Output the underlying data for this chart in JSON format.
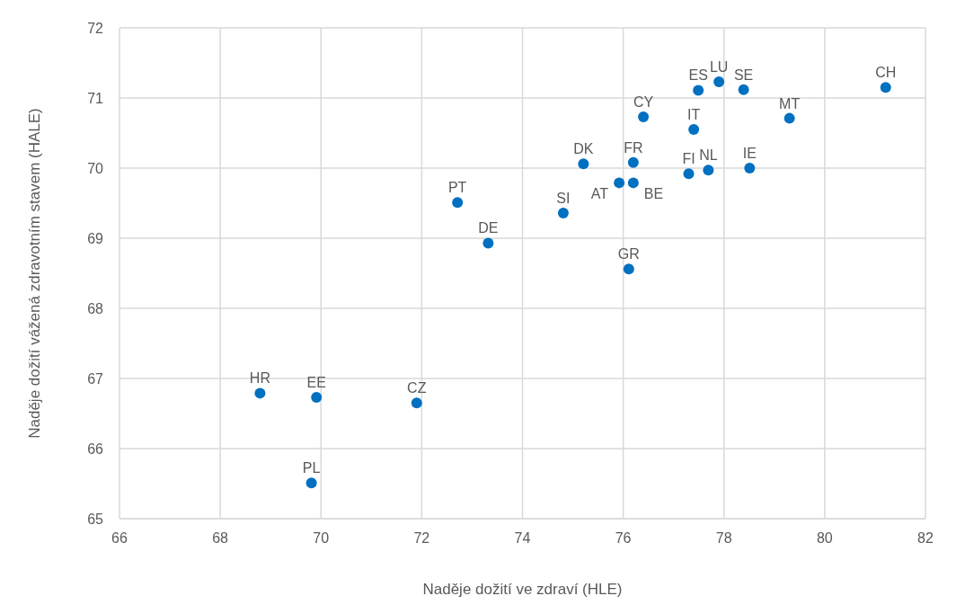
{
  "chart_data": {
    "type": "scatter",
    "xlabel": "Naděje dožití ve zdraví (HLE)",
    "ylabel": "Naděje dožití vážená zdravotním stavem (HALE)",
    "xlim": [
      66,
      82
    ],
    "xticks": [
      66,
      68,
      70,
      72,
      74,
      76,
      78,
      80,
      82
    ],
    "ylim": [
      65,
      72
    ],
    "yticks": [
      65,
      66,
      67,
      68,
      69,
      70,
      71,
      72
    ],
    "grid": true,
    "legend": false,
    "marker": "circle",
    "series": [
      {
        "name": "HR",
        "color": "#0070c0",
        "x": [
          68.79
        ],
        "values": [
          66.79
        ]
      },
      {
        "name": "EE",
        "color": "#0070c0",
        "x": [
          69.91
        ],
        "values": [
          66.73
        ]
      },
      {
        "name": "PL",
        "color": "#0070c0",
        "x": [
          69.81
        ],
        "values": [
          65.51
        ]
      },
      {
        "name": "CZ",
        "color": "#0070c0",
        "x": [
          71.9
        ],
        "values": [
          66.65
        ]
      },
      {
        "name": "PT",
        "color": "#0070c0",
        "x": [
          72.71
        ],
        "values": [
          69.51
        ]
      },
      {
        "name": "DE",
        "color": "#0070c0",
        "x": [
          73.32
        ],
        "values": [
          68.93
        ]
      },
      {
        "name": "SI",
        "color": "#0070c0",
        "x": [
          74.81
        ],
        "values": [
          69.36
        ]
      },
      {
        "name": "DK",
        "color": "#0070c0",
        "x": [
          75.21
        ],
        "values": [
          70.06
        ]
      },
      {
        "name": "AT",
        "color": "#0070c0",
        "x": [
          75.92
        ],
        "values": [
          69.79
        ]
      },
      {
        "name": "FR",
        "color": "#0070c0",
        "x": [
          76.2
        ],
        "values": [
          70.08
        ]
      },
      {
        "name": "BE",
        "color": "#0070c0",
        "x": [
          76.2
        ],
        "values": [
          69.79
        ]
      },
      {
        "name": "GR",
        "color": "#0070c0",
        "x": [
          76.11
        ],
        "values": [
          68.56
        ]
      },
      {
        "name": "CY",
        "color": "#0070c0",
        "x": [
          76.4
        ],
        "values": [
          70.73
        ]
      },
      {
        "name": "FI",
        "color": "#0070c0",
        "x": [
          77.3
        ],
        "values": [
          69.92
        ]
      },
      {
        "name": "IT",
        "color": "#0070c0",
        "x": [
          77.4
        ],
        "values": [
          70.55
        ]
      },
      {
        "name": "NL",
        "color": "#0070c0",
        "x": [
          77.69
        ],
        "values": [
          69.97
        ]
      },
      {
        "name": "ES",
        "color": "#0070c0",
        "x": [
          77.49
        ],
        "values": [
          71.11
        ]
      },
      {
        "name": "LU",
        "color": "#0070c0",
        "x": [
          77.9
        ],
        "values": [
          71.23
        ]
      },
      {
        "name": "SE",
        "color": "#0070c0",
        "x": [
          78.39
        ],
        "values": [
          71.12
        ]
      },
      {
        "name": "IE",
        "color": "#0070c0",
        "x": [
          78.51
        ],
        "values": [
          70.0
        ]
      },
      {
        "name": "MT",
        "color": "#0070c0",
        "x": [
          79.3
        ],
        "values": [
          70.71
        ]
      },
      {
        "name": "CH",
        "color": "#0070c0",
        "x": [
          81.21
        ],
        "values": [
          71.15
        ]
      }
    ]
  }
}
